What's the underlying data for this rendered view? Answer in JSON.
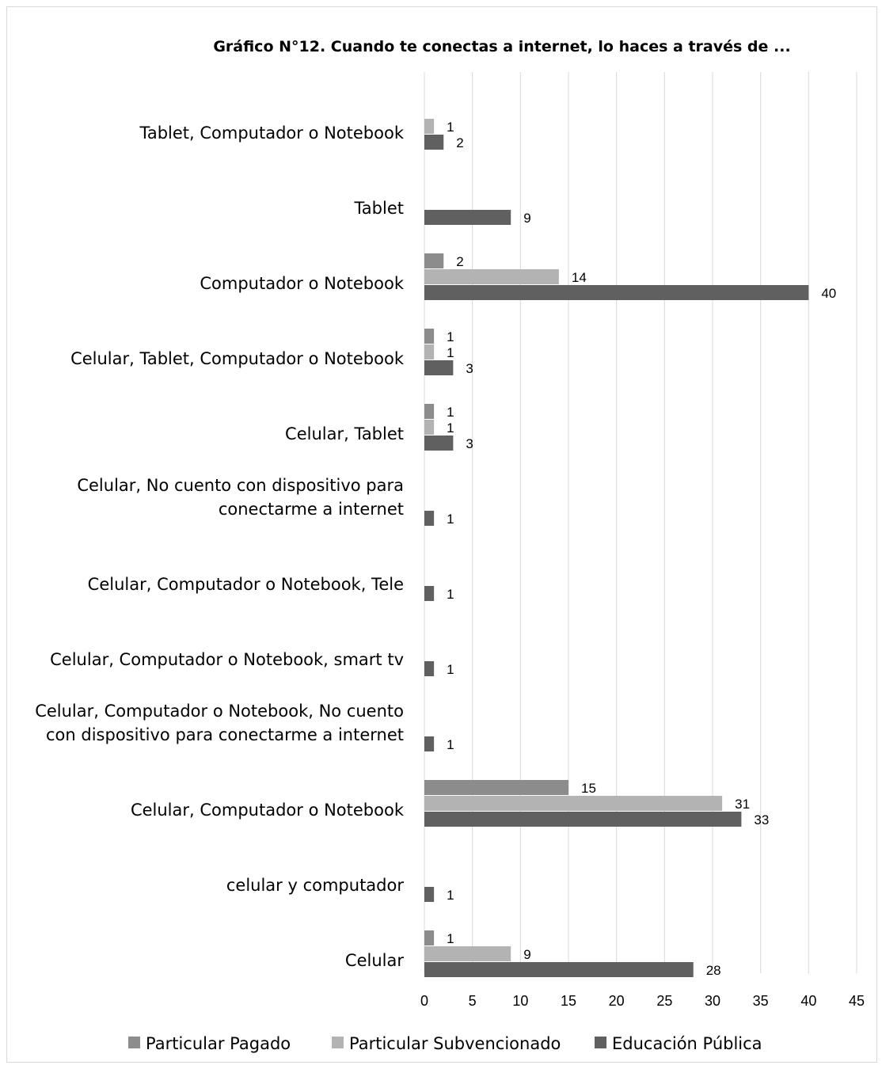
{
  "chart_data": {
    "type": "bar",
    "orientation": "horizontal",
    "title": "Gráfico N°12. Cuando te conectas a internet, lo haces a través de ...",
    "xlabel": "",
    "ylabel": "",
    "xlim": [
      0,
      45
    ],
    "x_ticks": [
      "0",
      "5",
      "10",
      "15",
      "20",
      "25",
      "30",
      "35",
      "40",
      "45"
    ],
    "grid": "vertical",
    "legend_position": "bottom",
    "categories": [
      [
        "Tablet, Computador o Notebook"
      ],
      [
        "Tablet"
      ],
      [
        "Computador o Notebook"
      ],
      [
        "Celular, Tablet, Computador o Notebook"
      ],
      [
        "Celular, Tablet"
      ],
      [
        "Celular, No cuento con dispositivo para",
        "conectarme a internet"
      ],
      [
        "Celular, Computador o Notebook, Tele"
      ],
      [
        "Celular, Computador o Notebook, smart tv"
      ],
      [
        "Celular, Computador o Notebook, No cuento",
        "con dispositivo para conectarme a internet"
      ],
      [
        "Celular, Computador o Notebook"
      ],
      [
        "celular y computador"
      ],
      [
        "Celular"
      ]
    ],
    "series": [
      {
        "name": "Particular Pagado",
        "color": "#8c8c8c",
        "values": [
          null,
          null,
          2,
          1,
          1,
          null,
          null,
          null,
          null,
          15,
          null,
          1
        ]
      },
      {
        "name": "Particular Subvencionado",
        "color": "#b3b3b3",
        "values": [
          1,
          null,
          14,
          1,
          1,
          null,
          null,
          null,
          null,
          31,
          null,
          9
        ]
      },
      {
        "name": "Educación Pública",
        "color": "#606060",
        "values": [
          2,
          9,
          40,
          3,
          3,
          1,
          1,
          1,
          1,
          33,
          1,
          28
        ]
      }
    ]
  }
}
